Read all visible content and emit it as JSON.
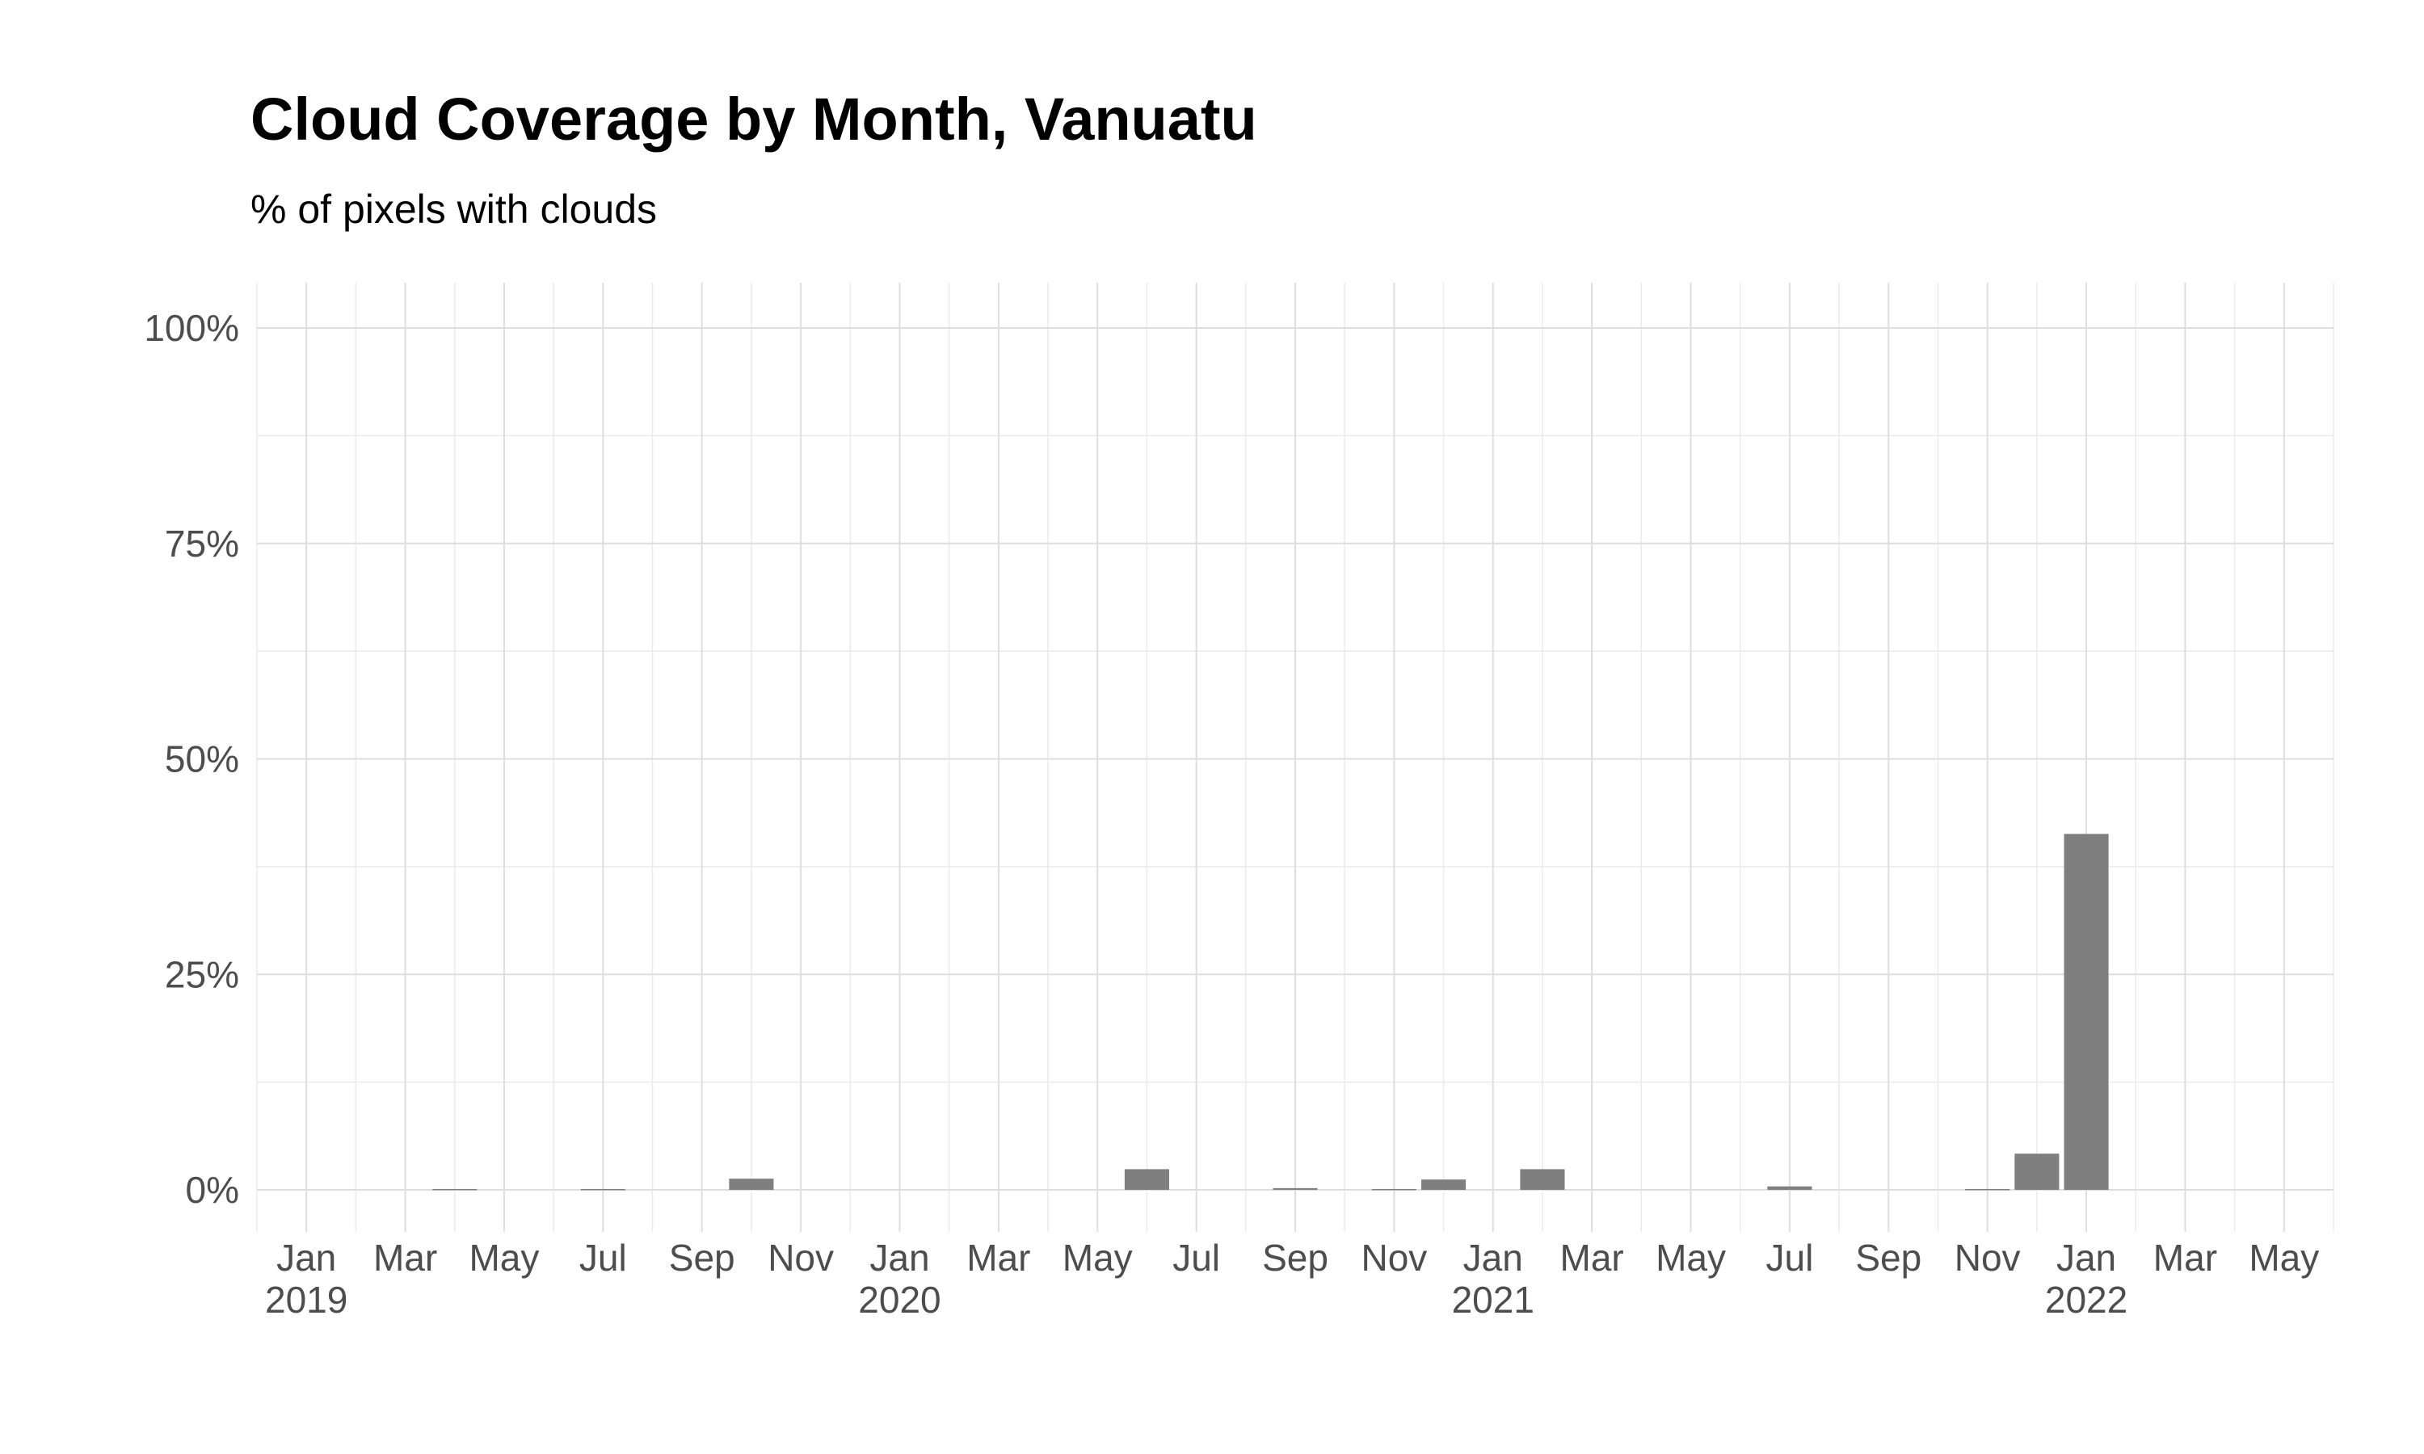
{
  "chart_data": {
    "type": "bar",
    "title": "Cloud Coverage by Month, Vanuatu",
    "subtitle": "% of pixels with clouds",
    "xlabel": "",
    "ylabel": "",
    "ylim": [
      0,
      100
    ],
    "yticks": [
      "0%",
      "25%",
      "50%",
      "75%",
      "100%"
    ],
    "ytick_values": [
      0,
      25,
      50,
      75,
      100
    ],
    "xlim": [
      "2018-12",
      "2022-06"
    ],
    "xticks": [
      {
        "month": "2019-01",
        "label": "Jan",
        "year": "2019"
      },
      {
        "month": "2019-03",
        "label": "Mar",
        "year": ""
      },
      {
        "month": "2019-05",
        "label": "May",
        "year": ""
      },
      {
        "month": "2019-07",
        "label": "Jul",
        "year": ""
      },
      {
        "month": "2019-09",
        "label": "Sep",
        "year": ""
      },
      {
        "month": "2019-11",
        "label": "Nov",
        "year": ""
      },
      {
        "month": "2020-01",
        "label": "Jan",
        "year": "2020"
      },
      {
        "month": "2020-03",
        "label": "Mar",
        "year": ""
      },
      {
        "month": "2020-05",
        "label": "May",
        "year": ""
      },
      {
        "month": "2020-07",
        "label": "Jul",
        "year": ""
      },
      {
        "month": "2020-09",
        "label": "Sep",
        "year": ""
      },
      {
        "month": "2020-11",
        "label": "Nov",
        "year": ""
      },
      {
        "month": "2021-01",
        "label": "Jan",
        "year": "2021"
      },
      {
        "month": "2021-03",
        "label": "Mar",
        "year": ""
      },
      {
        "month": "2021-05",
        "label": "May",
        "year": ""
      },
      {
        "month": "2021-07",
        "label": "Jul",
        "year": ""
      },
      {
        "month": "2021-09",
        "label": "Sep",
        "year": ""
      },
      {
        "month": "2021-11",
        "label": "Nov",
        "year": ""
      },
      {
        "month": "2022-01",
        "label": "Jan",
        "year": "2022"
      },
      {
        "month": "2022-03",
        "label": "Mar",
        "year": ""
      },
      {
        "month": "2022-05",
        "label": "May",
        "year": ""
      }
    ],
    "categories": [
      "2019-04",
      "2019-07",
      "2019-10",
      "2020-06",
      "2020-09",
      "2020-11",
      "2020-12",
      "2021-02",
      "2021-07",
      "2021-11",
      "2021-12",
      "2022-01"
    ],
    "values": [
      0.1,
      0.1,
      1.3,
      2.4,
      0.2,
      0.1,
      1.2,
      2.4,
      0.4,
      0.1,
      4.2,
      41.3
    ],
    "grid": true,
    "legend": "none",
    "colors": {
      "bar": "#7f7f7f",
      "grid_major": "#dedede",
      "grid_minor": "#ebebeb",
      "tick_text": "#4d4d4d"
    }
  }
}
